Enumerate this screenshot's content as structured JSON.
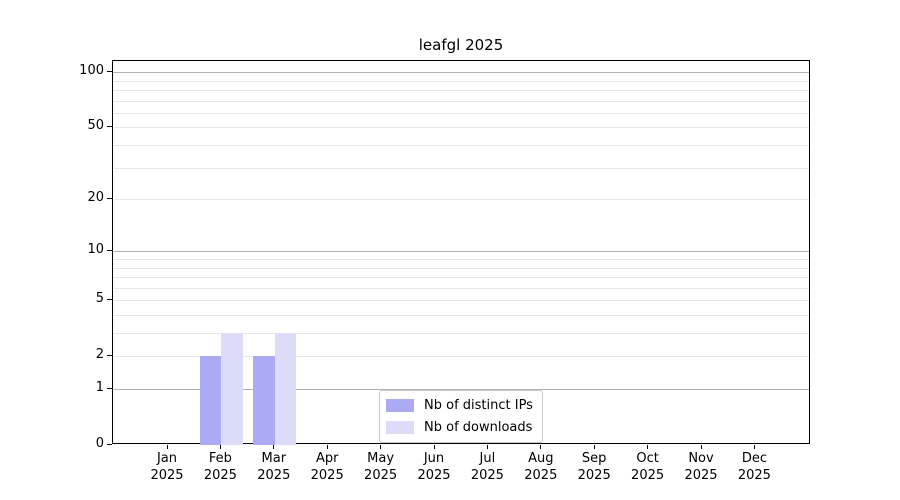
{
  "chart_data": {
    "type": "bar",
    "title": "leafgl 2025",
    "categories": [
      "Jan",
      "Feb",
      "Mar",
      "Apr",
      "May",
      "Jun",
      "Jul",
      "Aug",
      "Sep",
      "Oct",
      "Nov",
      "Dec"
    ],
    "year_label": "2025",
    "series": [
      {
        "name": "Nb of distinct IPs",
        "color": "#aaaaf5",
        "values": [
          0,
          2,
          2,
          0,
          0,
          0,
          0,
          0,
          0,
          0,
          0,
          0
        ]
      },
      {
        "name": "Nb of downloads",
        "color": "#dcdcf8",
        "values": [
          0,
          3,
          3,
          0,
          0,
          0,
          0,
          0,
          0,
          0,
          0,
          0
        ]
      }
    ],
    "y_axis": {
      "scale": "log10(1+x)",
      "tick_values": [
        0,
        1,
        2,
        5,
        10,
        20,
        50,
        100
      ],
      "tick_labels": [
        "0",
        "1",
        "2",
        "5",
        "10",
        "20",
        "50",
        "100"
      ],
      "major_gridlines": [
        1,
        10,
        100
      ],
      "minor_gridlines": [
        2,
        3,
        4,
        5,
        6,
        7,
        8,
        9,
        20,
        30,
        40,
        50,
        60,
        70,
        80,
        90
      ],
      "ylim": [
        0,
        115
      ]
    },
    "grid": true,
    "legend": {
      "position": "lower center",
      "border_color": "#cccccc"
    },
    "colors": {
      "spine": "#000000",
      "major_grid": "#b0b0b0",
      "minor_grid": "#e7e7e7",
      "background": "#ffffff"
    }
  }
}
